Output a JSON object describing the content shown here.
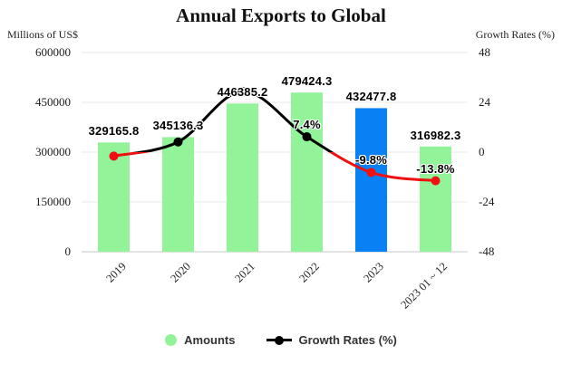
{
  "chart_data": {
    "type": "bar",
    "title": "Annual Exports to Global",
    "categories": [
      "2019",
      "2020",
      "2021",
      "2022",
      "2023",
      "2023 01 ~ 12"
    ],
    "series": [
      {
        "name": "Amounts",
        "type": "bar",
        "axis": "left",
        "values": [
          329165.8,
          345136.3,
          446385.2,
          479424.3,
          432477.8,
          316982.3
        ],
        "labels": [
          "329165.8",
          "345136.3",
          "446385.2",
          "479424.3",
          "432477.8",
          "316982.3"
        ],
        "bar_colors": [
          "#92f398",
          "#92f398",
          "#92f398",
          "#92f398",
          "#0a80f5",
          "#92f398"
        ]
      },
      {
        "name": "Growth Rates (%)",
        "type": "line",
        "axis": "right",
        "values": [
          -1.9,
          4.9,
          29.3,
          7.4,
          -9.8,
          -13.8
        ],
        "labels": [
          "",
          "",
          "",
          "7.4%",
          "-9.8%",
          "-13.8%"
        ],
        "positive_color": "#000000",
        "negative_color": "#f01010"
      }
    ],
    "left_axis": {
      "name": "Millions of US$",
      "min": 0,
      "max": 600000,
      "ticks": [
        "600000",
        "450000",
        "300000",
        "150000",
        "0"
      ]
    },
    "right_axis": {
      "name": "Growth Rates (%)",
      "min": -48,
      "max": 48,
      "ticks": [
        "48",
        "24",
        "0",
        "-24",
        "-48"
      ]
    },
    "grid": true,
    "legend_position": "bottom",
    "legend": [
      "Amounts",
      "Growth Rates (%)"
    ],
    "colors": {
      "bar_green": "#92f398",
      "bar_blue": "#0a80f5",
      "line_positive": "#000000",
      "line_negative": "#f01010",
      "gridline": "#e9e9e9",
      "axis_line": "#c9c9c9"
    }
  }
}
